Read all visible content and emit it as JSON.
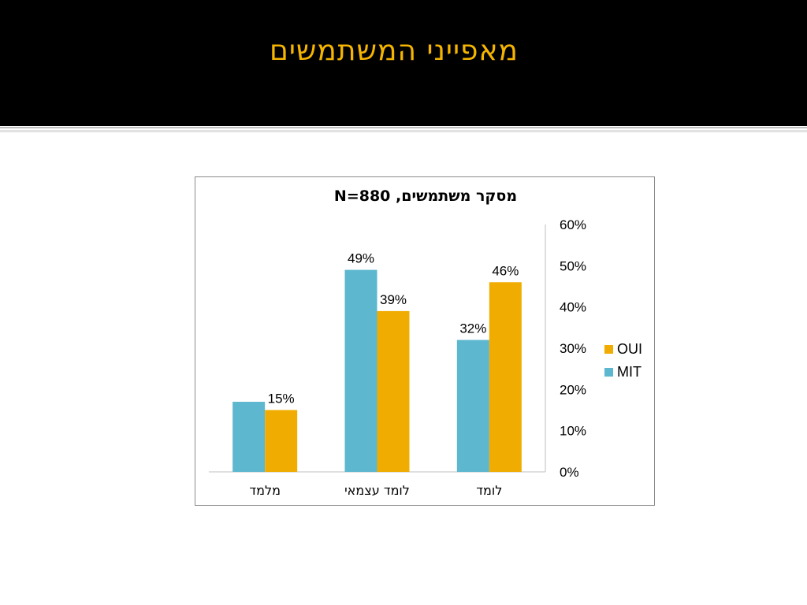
{
  "slide": {
    "title": "מאפייני המשתמשים"
  },
  "colors": {
    "header_bg": "#000000",
    "title": "#f5b400",
    "mit": "#5db7cf",
    "oui": "#f0ac00"
  },
  "chart_data": {
    "type": "bar",
    "title": "מסקר משתמשים, N=880",
    "categories": [
      "מלמד",
      "לומד עצמאי",
      "לומד"
    ],
    "series": [
      {
        "name": "MIT",
        "color": "#5db7cf",
        "values": [
          17,
          49,
          32
        ],
        "labels": [
          "",
          "49%",
          "32%"
        ]
      },
      {
        "name": "OUI",
        "color": "#f0ac00",
        "values": [
          15,
          39,
          46
        ],
        "labels": [
          "15%",
          "39%",
          "46%"
        ]
      }
    ],
    "ylim": [
      0,
      60
    ],
    "yticks": [
      "0%",
      "10%",
      "20%",
      "30%",
      "40%",
      "50%",
      "60%"
    ],
    "y_axis_position": "right",
    "gridlines": false,
    "legend": {
      "position": "right",
      "entries": [
        "OUI",
        "MIT"
      ]
    }
  }
}
